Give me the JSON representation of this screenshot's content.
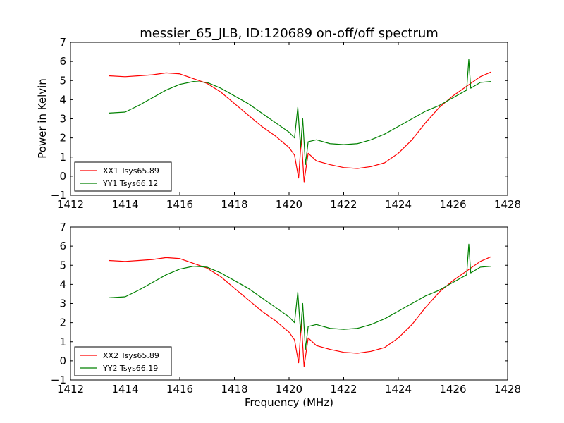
{
  "chart_data": [
    {
      "type": "line",
      "title": "messier_65_JLB, ID:120689 on-off/off spectrum",
      "xlabel": "",
      "ylabel": "Power in Kelvin",
      "xlim": [
        1412,
        1428
      ],
      "ylim": [
        -1,
        7
      ],
      "xticks": [
        "1412",
        "1414",
        "1416",
        "1418",
        "1420",
        "1422",
        "1424",
        "1426",
        "1428"
      ],
      "yticks": [
        "−1",
        "0",
        "1",
        "2",
        "3",
        "4",
        "5",
        "6",
        "7"
      ],
      "legend": "lower-left",
      "grid": false,
      "series": [
        {
          "name": "XX1 Tsys65.89",
          "color": "#ff0000",
          "points": [
            [
              1413.4,
              5.25
            ],
            [
              1414.0,
              5.2
            ],
            [
              1414.5,
              5.25
            ],
            [
              1415.0,
              5.3
            ],
            [
              1415.5,
              5.4
            ],
            [
              1416.0,
              5.35
            ],
            [
              1416.5,
              5.1
            ],
            [
              1417.0,
              4.85
            ],
            [
              1417.5,
              4.4
            ],
            [
              1418.0,
              3.8
            ],
            [
              1418.5,
              3.2
            ],
            [
              1419.0,
              2.6
            ],
            [
              1419.5,
              2.1
            ],
            [
              1420.0,
              1.5
            ],
            [
              1420.2,
              1.1
            ],
            [
              1420.35,
              -0.1
            ],
            [
              1420.45,
              2.0
            ],
            [
              1420.55,
              -0.3
            ],
            [
              1420.7,
              1.2
            ],
            [
              1421.0,
              0.8
            ],
            [
              1421.5,
              0.6
            ],
            [
              1422.0,
              0.45
            ],
            [
              1422.5,
              0.4
            ],
            [
              1423.0,
              0.5
            ],
            [
              1423.5,
              0.7
            ],
            [
              1424.0,
              1.2
            ],
            [
              1424.5,
              1.9
            ],
            [
              1425.0,
              2.8
            ],
            [
              1425.5,
              3.6
            ],
            [
              1426.0,
              4.2
            ],
            [
              1426.5,
              4.7
            ],
            [
              1427.0,
              5.2
            ],
            [
              1427.4,
              5.45
            ]
          ]
        },
        {
          "name": "YY1 Tsys66.12",
          "color": "#008000",
          "points": [
            [
              1413.4,
              3.3
            ],
            [
              1414.0,
              3.35
            ],
            [
              1414.5,
              3.7
            ],
            [
              1415.0,
              4.1
            ],
            [
              1415.5,
              4.5
            ],
            [
              1416.0,
              4.8
            ],
            [
              1416.5,
              4.95
            ],
            [
              1417.0,
              4.9
            ],
            [
              1417.5,
              4.6
            ],
            [
              1418.0,
              4.2
            ],
            [
              1418.5,
              3.8
            ],
            [
              1419.0,
              3.3
            ],
            [
              1419.5,
              2.8
            ],
            [
              1420.0,
              2.3
            ],
            [
              1420.2,
              2.0
            ],
            [
              1420.32,
              3.6
            ],
            [
              1420.42,
              1.5
            ],
            [
              1420.5,
              3.0
            ],
            [
              1420.6,
              0.6
            ],
            [
              1420.7,
              1.8
            ],
            [
              1421.0,
              1.9
            ],
            [
              1421.5,
              1.7
            ],
            [
              1422.0,
              1.65
            ],
            [
              1422.5,
              1.7
            ],
            [
              1423.0,
              1.9
            ],
            [
              1423.5,
              2.2
            ],
            [
              1424.0,
              2.6
            ],
            [
              1424.5,
              3.0
            ],
            [
              1425.0,
              3.4
            ],
            [
              1425.5,
              3.7
            ],
            [
              1426.0,
              4.1
            ],
            [
              1426.5,
              4.5
            ],
            [
              1426.58,
              6.1
            ],
            [
              1426.65,
              4.6
            ],
            [
              1427.0,
              4.9
            ],
            [
              1427.4,
              4.95
            ]
          ]
        }
      ]
    },
    {
      "type": "line",
      "title": "",
      "xlabel": "Frequency (MHz)",
      "ylabel": "",
      "xlim": [
        1412,
        1428
      ],
      "ylim": [
        -1,
        7
      ],
      "xticks": [
        "1412",
        "1414",
        "1416",
        "1418",
        "1420",
        "1422",
        "1424",
        "1426",
        "1428"
      ],
      "yticks": [
        "−1",
        "0",
        "1",
        "2",
        "3",
        "4",
        "5",
        "6",
        "7"
      ],
      "legend": "lower-left",
      "grid": false,
      "series": [
        {
          "name": "XX2 Tsys65.89",
          "color": "#ff0000",
          "points": [
            [
              1413.4,
              5.25
            ],
            [
              1414.0,
              5.2
            ],
            [
              1414.5,
              5.25
            ],
            [
              1415.0,
              5.3
            ],
            [
              1415.5,
              5.4
            ],
            [
              1416.0,
              5.35
            ],
            [
              1416.5,
              5.1
            ],
            [
              1417.0,
              4.85
            ],
            [
              1417.5,
              4.4
            ],
            [
              1418.0,
              3.8
            ],
            [
              1418.5,
              3.2
            ],
            [
              1419.0,
              2.6
            ],
            [
              1419.5,
              2.1
            ],
            [
              1420.0,
              1.5
            ],
            [
              1420.2,
              1.1
            ],
            [
              1420.35,
              -0.1
            ],
            [
              1420.45,
              2.0
            ],
            [
              1420.55,
              -0.3
            ],
            [
              1420.7,
              1.2
            ],
            [
              1421.0,
              0.8
            ],
            [
              1421.5,
              0.6
            ],
            [
              1422.0,
              0.45
            ],
            [
              1422.5,
              0.4
            ],
            [
              1423.0,
              0.5
            ],
            [
              1423.5,
              0.7
            ],
            [
              1424.0,
              1.2
            ],
            [
              1424.5,
              1.9
            ],
            [
              1425.0,
              2.8
            ],
            [
              1425.5,
              3.6
            ],
            [
              1426.0,
              4.2
            ],
            [
              1426.5,
              4.7
            ],
            [
              1427.0,
              5.2
            ],
            [
              1427.4,
              5.45
            ]
          ]
        },
        {
          "name": "YY2 Tsys66.19",
          "color": "#008000",
          "points": [
            [
              1413.4,
              3.3
            ],
            [
              1414.0,
              3.35
            ],
            [
              1414.5,
              3.7
            ],
            [
              1415.0,
              4.1
            ],
            [
              1415.5,
              4.5
            ],
            [
              1416.0,
              4.8
            ],
            [
              1416.5,
              4.95
            ],
            [
              1417.0,
              4.9
            ],
            [
              1417.5,
              4.6
            ],
            [
              1418.0,
              4.2
            ],
            [
              1418.5,
              3.8
            ],
            [
              1419.0,
              3.3
            ],
            [
              1419.5,
              2.8
            ],
            [
              1420.0,
              2.3
            ],
            [
              1420.2,
              2.0
            ],
            [
              1420.32,
              3.6
            ],
            [
              1420.42,
              1.5
            ],
            [
              1420.5,
              3.0
            ],
            [
              1420.6,
              0.6
            ],
            [
              1420.7,
              1.8
            ],
            [
              1421.0,
              1.9
            ],
            [
              1421.5,
              1.7
            ],
            [
              1422.0,
              1.65
            ],
            [
              1422.5,
              1.7
            ],
            [
              1423.0,
              1.9
            ],
            [
              1423.5,
              2.2
            ],
            [
              1424.0,
              2.6
            ],
            [
              1424.5,
              3.0
            ],
            [
              1425.0,
              3.4
            ],
            [
              1425.5,
              3.7
            ],
            [
              1426.0,
              4.1
            ],
            [
              1426.5,
              4.5
            ],
            [
              1426.58,
              6.1
            ],
            [
              1426.65,
              4.6
            ],
            [
              1427.0,
              4.9
            ],
            [
              1427.4,
              4.95
            ]
          ]
        }
      ]
    }
  ]
}
